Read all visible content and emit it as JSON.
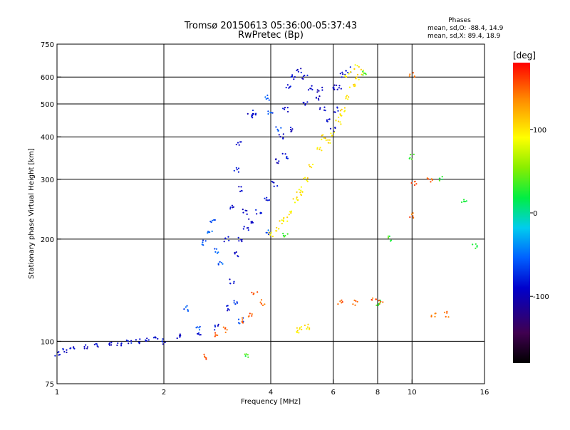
{
  "header": {
    "title": "Tromsø 20150613 05:36:00-05:37:43",
    "subtitle": "RwPretec (Bp)",
    "stats_title": "Phases",
    "stats_o": "mean, sd,O: -88.4, 14.9",
    "stats_x": "mean, sd,X:  89.4, 18.9"
  },
  "chart_data": {
    "type": "scatter",
    "xlabel": "Frequency [MHz]",
    "ylabel": "Stationary phase Virtual Height [km]",
    "xscale": "log",
    "yscale": "log",
    "xlim": [
      1,
      16
    ],
    "ylim": [
      75,
      750
    ],
    "xticks": [
      1,
      2,
      4,
      6,
      8,
      10,
      16
    ],
    "xtick_labels": [
      "1",
      "2",
      "4",
      "6",
      "8",
      "10",
      "16"
    ],
    "yticks": [
      75,
      100,
      200,
      300,
      400,
      500,
      600,
      750
    ],
    "ytick_labels": [
      "75",
      "100",
      "200",
      "300",
      "400",
      "500",
      "600",
      "750"
    ],
    "grid": true,
    "colorbar": {
      "label": "[deg]",
      "range": [
        -180,
        180
      ],
      "ticks": [
        -100,
        0,
        100
      ],
      "tick_labels": [
        "-100",
        "0",
        "100"
      ]
    },
    "series": [
      {
        "phase_deg": -90,
        "points": [
          [
            1.0,
            92
          ],
          [
            1.05,
            94
          ],
          [
            1.1,
            95
          ],
          [
            1.2,
            96
          ],
          [
            1.3,
            97
          ],
          [
            1.4,
            98
          ],
          [
            1.5,
            99
          ],
          [
            1.6,
            100
          ],
          [
            1.7,
            100
          ],
          [
            1.8,
            101
          ],
          [
            1.9,
            101
          ],
          [
            2.0,
            100
          ],
          [
            2.2,
            103
          ],
          [
            2.5,
            105
          ],
          [
            2.8,
            110
          ],
          [
            3.0,
            125
          ],
          [
            3.1,
            150
          ],
          [
            3.2,
            180
          ],
          [
            3.3,
            200
          ],
          [
            3.4,
            215
          ],
          [
            3.5,
            225
          ],
          [
            3.7,
            240
          ],
          [
            3.9,
            260
          ],
          [
            4.1,
            290
          ],
          [
            4.2,
            340
          ],
          [
            4.3,
            400
          ],
          [
            4.4,
            480
          ],
          [
            4.5,
            560
          ],
          [
            4.6,
            600
          ],
          [
            4.8,
            630
          ],
          [
            5.0,
            600
          ],
          [
            5.2,
            560
          ],
          [
            5.4,
            520
          ],
          [
            5.6,
            480
          ],
          [
            5.8,
            450
          ],
          [
            6.0,
            420
          ],
          [
            6.1,
            480
          ],
          [
            6.2,
            560
          ],
          [
            6.4,
            610
          ],
          [
            6.6,
            630
          ],
          [
            3.1,
            250
          ],
          [
            3.2,
            320
          ],
          [
            3.25,
            380
          ],
          [
            3.0,
            200
          ],
          [
            3.5,
            460
          ],
          [
            3.6,
            470
          ],
          [
            4.4,
            350
          ],
          [
            4.6,
            420
          ],
          [
            5.0,
            500
          ],
          [
            5.5,
            550
          ],
          [
            6.0,
            560
          ],
          [
            3.3,
            280
          ],
          [
            3.4,
            240
          ]
        ]
      },
      {
        "phase_deg": -60,
        "points": [
          [
            2.6,
            195
          ],
          [
            2.7,
            210
          ],
          [
            2.75,
            225
          ],
          [
            2.8,
            185
          ],
          [
            2.9,
            170
          ],
          [
            3.2,
            130
          ],
          [
            3.3,
            115
          ],
          [
            2.3,
            125
          ],
          [
            2.5,
            110
          ],
          [
            3.9,
            210
          ],
          [
            4.2,
            420
          ],
          [
            4.0,
            470
          ],
          [
            3.9,
            520
          ]
        ]
      },
      {
        "phase_deg": 100,
        "points": [
          [
            4.2,
            215
          ],
          [
            4.3,
            225
          ],
          [
            4.5,
            240
          ],
          [
            4.7,
            260
          ],
          [
            4.9,
            280
          ],
          [
            5.0,
            300
          ],
          [
            5.2,
            330
          ],
          [
            5.5,
            370
          ],
          [
            5.8,
            390
          ],
          [
            6.0,
            410
          ],
          [
            6.2,
            440
          ],
          [
            6.4,
            480
          ],
          [
            6.6,
            520
          ],
          [
            6.8,
            560
          ],
          [
            7.0,
            600
          ],
          [
            7.2,
            620
          ],
          [
            7.0,
            640
          ],
          [
            6.6,
            610
          ],
          [
            4.0,
            205
          ],
          [
            4.4,
            230
          ],
          [
            4.8,
            270
          ],
          [
            5.6,
            400
          ],
          [
            6.3,
            460
          ],
          [
            4.8,
            108
          ],
          [
            4.9,
            110
          ],
          [
            5.1,
            110
          ]
        ]
      },
      {
        "phase_deg": 150,
        "points": [
          [
            3.3,
            115
          ],
          [
            3.5,
            120
          ],
          [
            3.6,
            140
          ],
          [
            3.8,
            130
          ],
          [
            2.6,
            90
          ],
          [
            2.8,
            105
          ],
          [
            3.0,
            108
          ],
          [
            6.3,
            130
          ],
          [
            6.9,
            130
          ],
          [
            7.8,
            132
          ],
          [
            8.2,
            130
          ],
          [
            11.5,
            120
          ],
          [
            12.5,
            120
          ],
          [
            10.1,
            290
          ],
          [
            11.2,
            300
          ],
          [
            10.0,
            235
          ],
          [
            10.0,
            610
          ]
        ]
      },
      {
        "phase_deg": 30,
        "points": [
          [
            10.0,
            350
          ],
          [
            8.7,
            200
          ],
          [
            12.0,
            300
          ],
          [
            8.0,
            130
          ],
          [
            14.0,
            260
          ],
          [
            15.0,
            190
          ],
          [
            3.4,
            90
          ],
          [
            7.4,
            620
          ],
          [
            4.4,
            205
          ]
        ]
      }
    ]
  }
}
